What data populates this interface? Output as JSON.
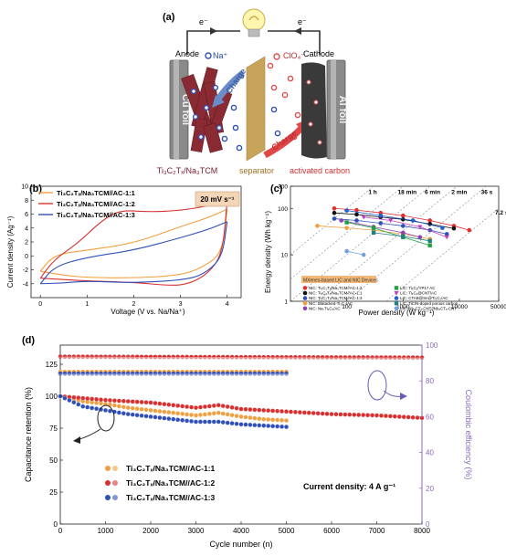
{
  "panel_a": {
    "label": "(a)",
    "electron_left": "e⁻",
    "electron_right": "e⁻",
    "anode_label": "Anode",
    "cathode_label": "Cathode",
    "na_ion": "Na⁺",
    "clo4_ion": "ClO₄⁻",
    "charge_left": "Charge",
    "charge_right": "Charge",
    "cu_foil": "Cu foil",
    "al_foil": "Al foil",
    "anode_material": "Ti₃C₂Tₓ/Na₃TCM",
    "separator": "separator",
    "cathode_material": "activated carbon"
  },
  "chart_data": [
    {
      "type": "line",
      "panel": "(b)",
      "xlabel": "Voltage (V vs. Na/Na⁺)",
      "ylabel": "Current density (Ag⁻¹)",
      "xlim": [
        -0.2,
        4.3
      ],
      "ylim": [
        -6,
        10
      ],
      "xticks": [
        "0",
        "1",
        "2",
        "3",
        "4"
      ],
      "yticks": [
        "-4",
        "-2",
        "0",
        "2",
        "4",
        "6",
        "8",
        "10"
      ],
      "annotation": "20 mV s⁻¹",
      "legend_position": "top-left",
      "series": [
        {
          "name": "Ti₃C₂Tₓ/Na₃TCM//AC-1:1",
          "color": "#f0a040",
          "upper": [
            [
              0,
              -2.2
            ],
            [
              0.3,
              0.2
            ],
            [
              1,
              0.8
            ],
            [
              2,
              1.8
            ],
            [
              3,
              4.2
            ],
            [
              3.6,
              5.5
            ],
            [
              4,
              6.7
            ]
          ],
          "lower": [
            [
              4,
              6.7
            ],
            [
              3.9,
              0.5
            ],
            [
              3.5,
              -1.6
            ],
            [
              3,
              -2.8
            ],
            [
              2,
              -3.2
            ],
            [
              1,
              -3.1
            ],
            [
              0.5,
              -2.8
            ],
            [
              0,
              -2.2
            ]
          ]
        },
        {
          "name": "Ti₃C₂Tₓ/Na₃TCM//AC-1:2",
          "color": "#d83030",
          "upper": [
            [
              0,
              -3.2
            ],
            [
              0.3,
              -0.5
            ],
            [
              0.8,
              1.8
            ],
            [
              1.3,
              5
            ],
            [
              1.7,
              6.6
            ],
            [
              2.3,
              6.3
            ],
            [
              3,
              6.5
            ],
            [
              3.6,
              7.2
            ],
            [
              4,
              7.8
            ]
          ],
          "lower": [
            [
              4,
              7.8
            ],
            [
              3.9,
              0.3
            ],
            [
              3.6,
              -2.5
            ],
            [
              3.2,
              -4
            ],
            [
              2.8,
              -4.3
            ],
            [
              2,
              -3.8
            ],
            [
              1,
              -3.6
            ],
            [
              0.5,
              -3.4
            ],
            [
              0,
              -3.2
            ]
          ]
        },
        {
          "name": "Ti₃C₂Tₓ/Na₃TCM//AC-1:3",
          "color": "#3050b8",
          "upper": [
            [
              0,
              -4
            ],
            [
              0.3,
              -1.5
            ],
            [
              1,
              -0.2
            ],
            [
              2,
              0.8
            ],
            [
              3,
              2.6
            ],
            [
              3.6,
              3.8
            ],
            [
              4,
              4.9
            ]
          ],
          "lower": [
            [
              4,
              4.9
            ],
            [
              3.9,
              0
            ],
            [
              3.6,
              -2.2
            ],
            [
              3.2,
              -3.4
            ],
            [
              2,
              -3.9
            ],
            [
              1,
              -3.6
            ],
            [
              0.5,
              -3.9
            ],
            [
              0,
              -4
            ]
          ]
        }
      ]
    },
    {
      "type": "scatter",
      "panel": "(c)",
      "xlabel": "Power density (W kg⁻¹)",
      "ylabel": "Energy density (Wh kg⁻¹)",
      "xscale": "log",
      "yscale": "log",
      "xlim": [
        10,
        50000
      ],
      "ylim": [
        1,
        300
      ],
      "xticks": [
        "100",
        "1000",
        "10000",
        "50000"
      ],
      "yticks": [
        "1",
        "10",
        "100",
        "300"
      ],
      "time_lines": [
        "1 h",
        "18 min",
        "6 min",
        "2 min",
        "36 s",
        "7.2 s"
      ],
      "legend_title": "MXenes-based LIC and NIC Devices",
      "legend_position": "bottom-right",
      "series": [
        {
          "name": "NIC: Ti₃C₂Tₓ/Na₃TCM//AC-1:2",
          "color": "#e03030",
          "marker": "circle",
          "points": [
            [
              60,
              100
            ],
            [
              150,
              92
            ],
            [
              400,
              80
            ],
            [
              1000,
              70
            ],
            [
              3000,
              55
            ],
            [
              8000,
              42
            ],
            [
              15000,
              34
            ]
          ]
        },
        {
          "name": "NIC: Ti₃C₂Tₓ/Na₃TCM//AC-1:1",
          "color": "#111111",
          "marker": "circle",
          "points": [
            [
              60,
              80
            ],
            [
              150,
              74
            ],
            [
              400,
              65
            ],
            [
              1000,
              58
            ],
            [
              3000,
              46
            ],
            [
              8000,
              37
            ]
          ]
        },
        {
          "name": "NIC: Ti₃C₂Tₓ/Na₃TCM//AC-1:3",
          "color": "#3050b8",
          "marker": "circle",
          "points": [
            [
              60,
              60
            ],
            [
              150,
              55
            ],
            [
              400,
              48
            ],
            [
              1000,
              42
            ],
            [
              3000,
              34
            ],
            [
              6000,
              28
            ]
          ]
        },
        {
          "name": "NIC: Blatacked-Ti₃C₂/AC",
          "color": "#f0a040",
          "marker": "circle",
          "points": [
            [
              30,
              42
            ],
            [
              100,
              38
            ],
            [
              300,
              34
            ],
            [
              1000,
              28
            ],
            [
              3000,
              22
            ]
          ]
        },
        {
          "name": "NIC: Na-Ti₃C₂/AC",
          "color": "#9040b0",
          "marker": "circle",
          "points": [
            [
              80,
              55
            ],
            [
              300,
              40
            ],
            [
              1000,
              30
            ],
            [
              2000,
              24
            ]
          ]
        },
        {
          "name": "LIC: Ti₃C₂/YP17 AC",
          "color": "#20a040",
          "marker": "square",
          "points": [
            [
              100,
              50
            ],
            [
              300,
              38
            ],
            [
              1000,
              24
            ],
            [
              3000,
              16
            ]
          ]
        },
        {
          "name": "LIC: Ti₃C₂@CNT/AC",
          "color": "#c040c0",
          "marker": "triangle",
          "points": [
            [
              200,
              65
            ],
            [
              600,
              55
            ],
            [
              2000,
              40
            ],
            [
              6000,
              24
            ]
          ]
        },
        {
          "name": "LIC: CTAB@Sn@Ti₃C₂/AC",
          "color": "#2060d0",
          "marker": "circle",
          "points": [
            [
              100,
              90
            ],
            [
              400,
              70
            ],
            [
              1500,
              55
            ],
            [
              5000,
              38
            ]
          ]
        },
        {
          "name": "LIC: TiC/N-doped porous carbon",
          "color": "#208080",
          "marker": "square",
          "points": [
            [
              300,
              30
            ],
            [
              1000,
              25
            ],
            [
              3000,
              20
            ]
          ]
        },
        {
          "name": "LIC: Nb₂CTₓ-CNT//Nb₂CTₓ-CNT",
          "color": "#70a0e0",
          "marker": "circle",
          "points": [
            [
              100,
              12
            ],
            [
              200,
              10
            ]
          ]
        }
      ]
    },
    {
      "type": "scatter",
      "panel": "(d)",
      "xlabel": "Cycle number (n)",
      "ylabel": "Capacitance retention (%)",
      "y2label": "Coulombic efficiency (%)",
      "xlim": [
        0,
        8000
      ],
      "ylim": [
        0,
        140
      ],
      "y2lim": [
        0,
        100
      ],
      "xticks": [
        "0",
        "1000",
        "2000",
        "3000",
        "4000",
        "5000",
        "6000",
        "7000",
        "8000"
      ],
      "yticks": [
        "0",
        "25",
        "50",
        "75",
        "100",
        "125"
      ],
      "y2ticks": [
        "0",
        "20",
        "40",
        "60",
        "80",
        "100"
      ],
      "annotation": "Current density: 4 A g⁻¹",
      "legend_position": "bottom-left",
      "series": [
        {
          "name": "Ti₃C₂Tₓ/Na₃TCM//AC-1:1",
          "color": "#f0a040",
          "retention": [
            [
              0,
              100
            ],
            [
              500,
              96
            ],
            [
              1000,
              94
            ],
            [
              1500,
              91
            ],
            [
              2000,
              89
            ],
            [
              2500,
              87
            ],
            [
              3000,
              85
            ],
            [
              3500,
              87
            ],
            [
              4000,
              84
            ],
            [
              4500,
              82
            ],
            [
              5000,
              81
            ]
          ],
          "efficiency": [
            [
              0,
              85
            ],
            [
              5000,
              85
            ]
          ]
        },
        {
          "name": "Ti₃C₂Tₓ/Na₃TCM//AC-1:2",
          "color": "#d83030",
          "retention": [
            [
              0,
              100
            ],
            [
              1000,
              97
            ],
            [
              2000,
              95
            ],
            [
              3000,
              91
            ],
            [
              3500,
              93
            ],
            [
              4000,
              90
            ],
            [
              5000,
              88
            ],
            [
              6000,
              86
            ],
            [
              7000,
              85
            ],
            [
              8000,
              83
            ]
          ],
          "efficiency": [
            [
              0,
              93.5
            ],
            [
              8000,
              93
            ]
          ]
        },
        {
          "name": "Ti₃C₂Tₓ/Na₃TCM//AC-1:3",
          "color": "#3050b8",
          "retention": [
            [
              0,
              100
            ],
            [
              500,
              92
            ],
            [
              1000,
              89
            ],
            [
              1500,
              86
            ],
            [
              2000,
              84
            ],
            [
              2500,
              82
            ],
            [
              3000,
              80
            ],
            [
              3500,
              80
            ],
            [
              4000,
              78
            ],
            [
              4500,
              77
            ],
            [
              5000,
              76
            ]
          ],
          "efficiency": [
            [
              0,
              84
            ],
            [
              5000,
              84
            ]
          ]
        }
      ]
    }
  ]
}
